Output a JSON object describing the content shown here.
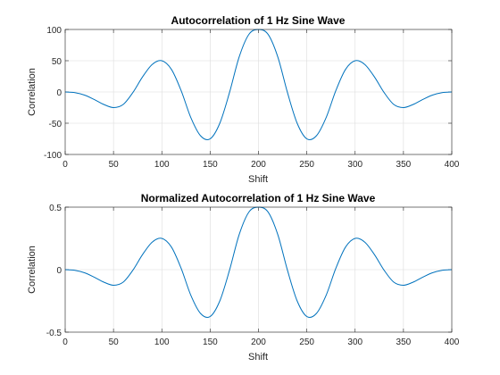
{
  "chart_data": [
    {
      "type": "line",
      "title": "Autocorrelation of 1 Hz Sine Wave",
      "xlabel": "Shift",
      "ylabel": "Correlation",
      "xlim": [
        0,
        400
      ],
      "ylim": [
        -100,
        100
      ],
      "xticks": [
        0,
        50,
        100,
        150,
        200,
        250,
        300,
        350,
        400
      ],
      "yticks": [
        -100,
        -50,
        0,
        50,
        100
      ],
      "xtick_labels": [
        "0",
        "50",
        "100",
        "150",
        "200",
        "250",
        "300",
        "350",
        "400"
      ],
      "ytick_labels": [
        "-100",
        "-50",
        "0",
        "50",
        "100"
      ],
      "grid": true,
      "color": "#0072BD",
      "series": [
        {
          "x": [
            0,
            10,
            20,
            30,
            40,
            50,
            60,
            70,
            80,
            90,
            100,
            110,
            120,
            130,
            140,
            150,
            160,
            170,
            180,
            190,
            200,
            210,
            220,
            230,
            240,
            250,
            260,
            270,
            280,
            290,
            300,
            310,
            320,
            330,
            340,
            350,
            360,
            370,
            380,
            390,
            400
          ],
          "y": [
            0,
            -1,
            -5,
            -12,
            -20,
            -25,
            -20,
            -1,
            24,
            44,
            50,
            36,
            2,
            -41,
            -70,
            -75,
            -50,
            -1,
            56,
            92,
            100,
            92,
            56,
            -1,
            -50,
            -75,
            -70,
            -41,
            2,
            36,
            50,
            44,
            24,
            -1,
            -20,
            -25,
            -20,
            -12,
            -5,
            -1,
            0
          ]
        }
      ]
    },
    {
      "type": "line",
      "title": "Normalized Autocorrelation of 1 Hz Sine Wave",
      "xlabel": "Shift",
      "ylabel": "Correlation",
      "xlim": [
        0,
        400
      ],
      "ylim": [
        -0.5,
        0.5
      ],
      "xticks": [
        0,
        50,
        100,
        150,
        200,
        250,
        300,
        350,
        400
      ],
      "yticks": [
        -0.5,
        0,
        0.5
      ],
      "xtick_labels": [
        "0",
        "50",
        "100",
        "150",
        "200",
        "250",
        "300",
        "350",
        "400"
      ],
      "ytick_labels": [
        "-0.5",
        "0",
        "0.5"
      ],
      "grid": true,
      "color": "#0072BD",
      "series": [
        {
          "x": [
            0,
            10,
            20,
            30,
            40,
            50,
            60,
            70,
            80,
            90,
            100,
            110,
            120,
            130,
            140,
            150,
            160,
            170,
            180,
            190,
            200,
            210,
            220,
            230,
            240,
            250,
            260,
            270,
            280,
            290,
            300,
            310,
            320,
            330,
            340,
            350,
            360,
            370,
            380,
            390,
            400
          ],
          "y": [
            0,
            -0.005,
            -0.025,
            -0.06,
            -0.1,
            -0.125,
            -0.1,
            -0.005,
            0.12,
            0.22,
            0.25,
            0.18,
            0.01,
            -0.205,
            -0.35,
            -0.375,
            -0.25,
            -0.005,
            0.28,
            0.46,
            0.5,
            0.46,
            0.28,
            -0.005,
            -0.25,
            -0.375,
            -0.35,
            -0.205,
            0.01,
            0.18,
            0.25,
            0.22,
            0.12,
            -0.005,
            -0.1,
            -0.125,
            -0.1,
            -0.06,
            -0.025,
            -0.005,
            0
          ]
        }
      ]
    }
  ]
}
